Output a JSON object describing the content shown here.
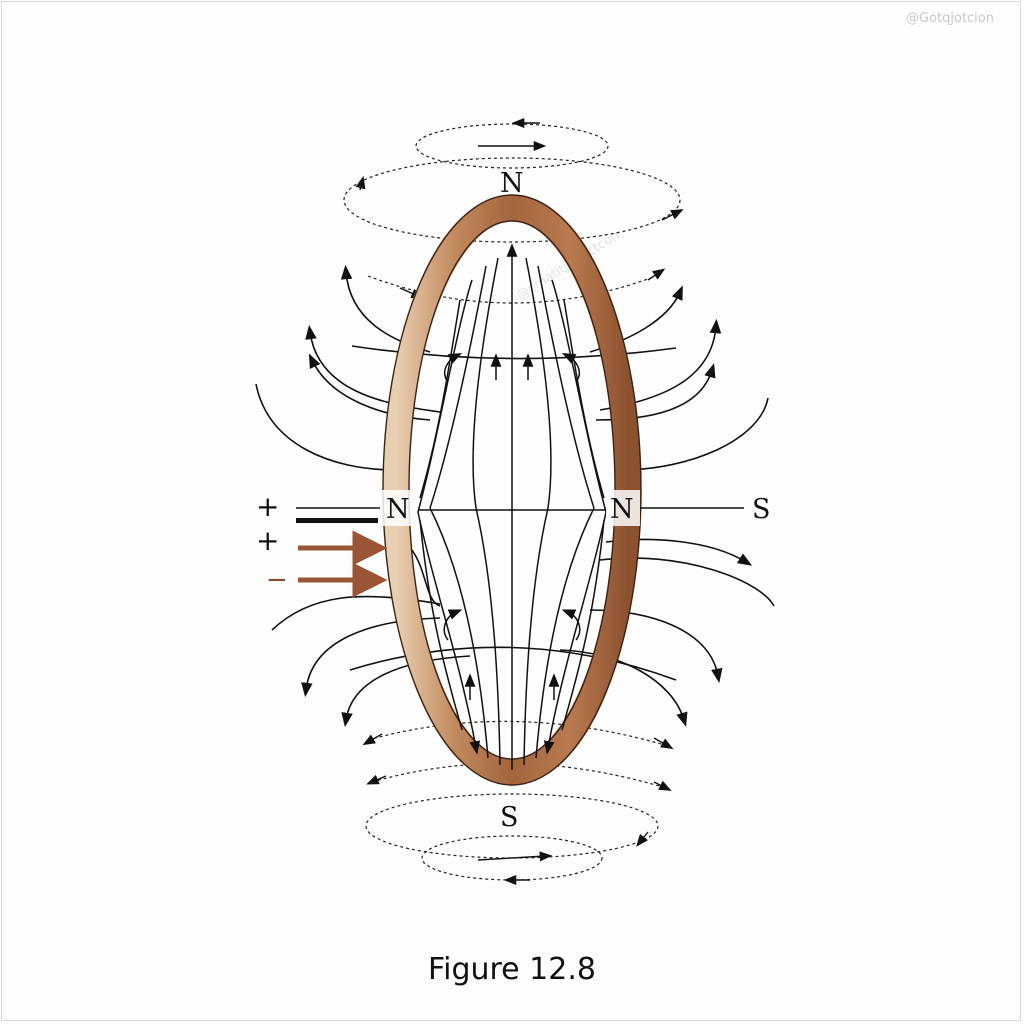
{
  "labels": {
    "pole_top": "N",
    "pole_bottom": "S",
    "pole_left": "N",
    "pole_right": "N",
    "pole_far_right": "S",
    "plus_1": "+",
    "plus_2": "+",
    "minus": "−"
  },
  "caption": "Figure 12.8",
  "watermark": "@Gotqjotcion",
  "colors": {
    "ring": "#a8693f",
    "ring_highlight": "#e8c9a8",
    "field_line": "#111111",
    "current_arrow": "#9a5634"
  }
}
